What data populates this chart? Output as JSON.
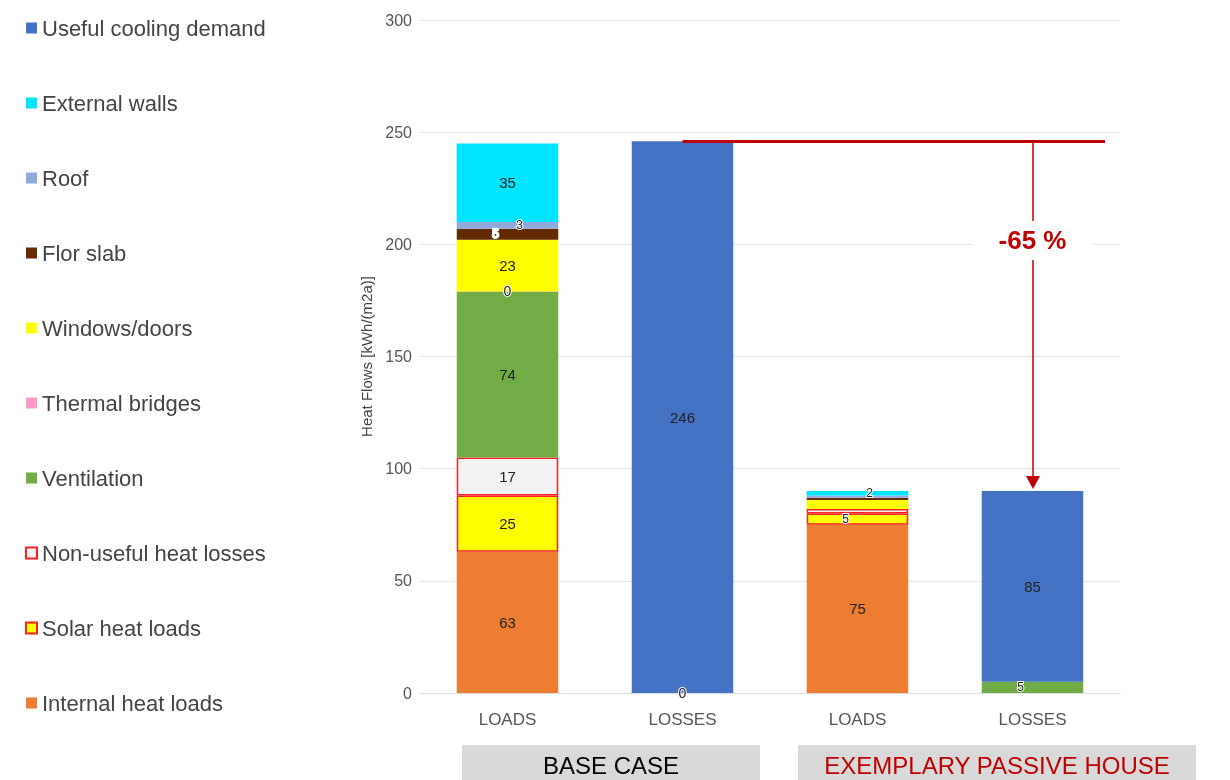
{
  "chart_data": {
    "type": "bar",
    "stacked": true,
    "ylabel": "Heat Flows [kWh/(m2a)]",
    "categories": [
      "LOADS",
      "LOSSES",
      "LOADS",
      "LOSSES"
    ],
    "ylim": [
      0,
      300
    ],
    "yticks": [
      0,
      50,
      100,
      150,
      200,
      250,
      300
    ],
    "grid": "y",
    "legend": "left",
    "series": [
      {
        "name": "Internal heat loads",
        "color": "#ed7d31",
        "values": [
          63,
          null,
          75,
          null
        ],
        "value_labels": [
          "63",
          null,
          "75",
          null
        ]
      },
      {
        "name": "Solar heat loads",
        "color": "#ffff00",
        "values": [
          25,
          null,
          5,
          null
        ],
        "value_labels": [
          "25",
          null,
          "5",
          null
        ]
      },
      {
        "name": "Non-useful heat losses",
        "color": "#f2f2f2",
        "values": [
          17,
          null,
          2,
          null
        ],
        "value_labels": [
          "17",
          null,
          null,
          null
        ]
      },
      {
        "name": "Ventilation",
        "color": "#70ad47",
        "values": [
          74,
          0,
          null,
          5
        ],
        "value_labels": [
          "74",
          "0",
          null,
          "5"
        ]
      },
      {
        "name": "Thermal bridges",
        "color": "#ff99cc",
        "values": [
          0,
          null,
          null,
          null
        ],
        "value_labels": [
          "0",
          null,
          null,
          null
        ]
      },
      {
        "name": "Windows/doors",
        "color": "#ffff00",
        "values": [
          23,
          null,
          4,
          null
        ],
        "value_labels": [
          "23",
          null,
          null,
          null
        ]
      },
      {
        "name": "Flor slab",
        "color": "#632b00",
        "values": [
          5,
          null,
          1,
          null
        ],
        "value_labels": [
          "5",
          null,
          null,
          null
        ]
      },
      {
        "name": "Roof",
        "color": "#8faadc",
        "values": [
          3,
          null,
          1,
          null
        ],
        "value_labels": [
          "3",
          null,
          null,
          null
        ]
      },
      {
        "name": "External walls",
        "color": "#00e5ff",
        "values": [
          35,
          null,
          2,
          null
        ],
        "value_labels": [
          "35",
          null,
          "2",
          null
        ]
      },
      {
        "name": "Useful cooling demand",
        "color": "#4472c4",
        "values": [
          null,
          246,
          null,
          85
        ],
        "value_labels": [
          null,
          "246",
          null,
          "85"
        ]
      }
    ],
    "ref_lines": [
      {
        "axis": "y",
        "value": 246,
        "color": "#c00000"
      }
    ],
    "annotations": [
      "-65 %",
      "BASE CASE",
      "EXEMPLARY PASSIVE HOUSE"
    ]
  }
}
